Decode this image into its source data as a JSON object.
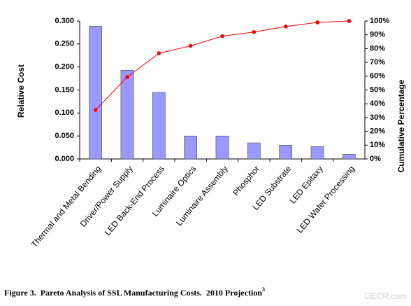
{
  "chart_data": {
    "type": "pareto",
    "caption": "Figure 3.  Pareto Analysis of SSL Manufacturing Costs.  2010 Projection",
    "caption_note": "3",
    "watermark": "OECR.com",
    "y_label": "Relative Cost",
    "y2_label": "Cumulative Percentage",
    "categories": [
      "Thermal and Metal Bending",
      "Driver/Power Supply",
      "LED Back-End Process",
      "Luminaire Optics",
      "Luminaire Assembly",
      "Phosphor",
      "LED Substrate",
      "LED Epitaxy",
      "LED Wafer Processing"
    ],
    "series": [
      {
        "color": "#9999ff",
        "values": [
          0.289,
          0.193,
          0.145,
          0.05,
          0.05,
          0.035,
          0.03,
          0.027,
          0.01
        ]
      },
      {
        "color": "#ff0000",
        "axis": "y2",
        "values": [
          35.5,
          59.4,
          76.6,
          82,
          89,
          92,
          96,
          99,
          100
        ]
      }
    ],
    "ylim": [
      0,
      0.3
    ],
    "yticks": [
      {
        "value": 0,
        "label": "0.000"
      },
      {
        "value": 0.05,
        "label": "0.050"
      },
      {
        "value": 0.1,
        "label": "0.100"
      },
      {
        "value": 0.15,
        "label": "0.150"
      },
      {
        "value": 0.2,
        "label": "0.200"
      },
      {
        "value": 0.25,
        "label": "0.250"
      },
      {
        "value": 0.3,
        "label": "0.300"
      }
    ],
    "y2lim": [
      0,
      100
    ],
    "y2ticks": [
      {
        "value": 0,
        "label": "0%"
      },
      {
        "value": 10,
        "label": "10%"
      },
      {
        "value": 20,
        "label": "20%"
      },
      {
        "value": 30,
        "label": "30%"
      },
      {
        "value": 40,
        "label": "40%"
      },
      {
        "value": 50,
        "label": "50%"
      },
      {
        "value": 60,
        "label": "60%"
      },
      {
        "value": 70,
        "label": "70%"
      },
      {
        "value": 80,
        "label": "80%"
      },
      {
        "value": 90,
        "label": "90%"
      },
      {
        "value": 100,
        "label": "100%"
      }
    ]
  }
}
